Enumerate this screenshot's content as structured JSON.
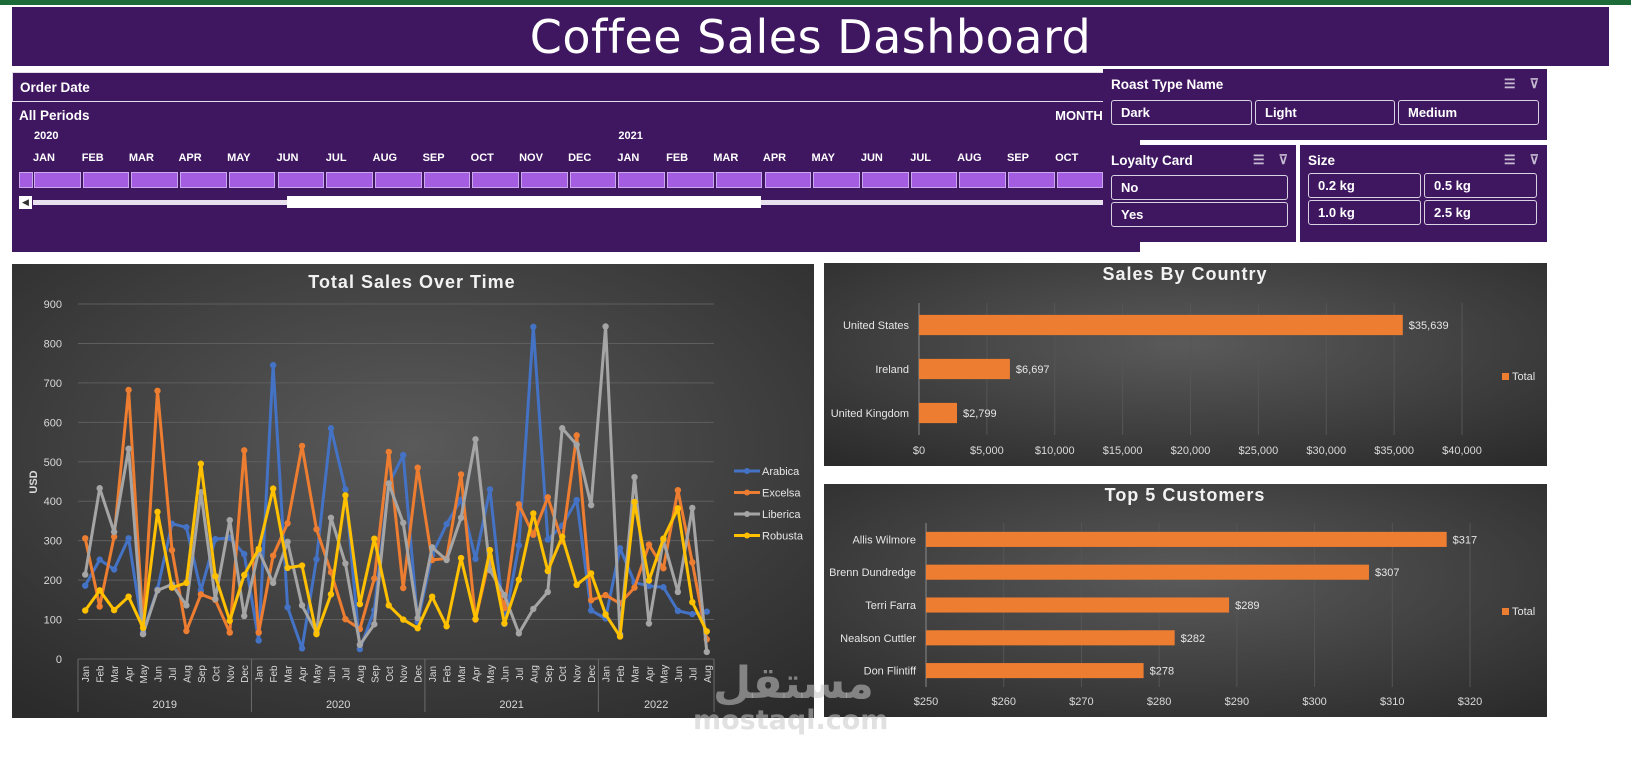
{
  "title": "Coffee Sales Dashboard",
  "colors": {
    "brand": "#3f1660",
    "bar": "#ed7d31",
    "arabica": "#4472c4",
    "excelsa": "#ed7d31",
    "liberica": "#a5a5a5",
    "robusta": "#ffc000"
  },
  "timeline": {
    "title": "Order Date",
    "periods_label": "All Periods",
    "granularity": "MONTHS",
    "years": [
      "2020",
      "2021"
    ],
    "months": [
      "JAN",
      "FEB",
      "MAR",
      "APR",
      "MAY",
      "JUN",
      "JUL",
      "AUG",
      "SEP",
      "OCT",
      "NOV",
      "DEC",
      "JAN",
      "FEB",
      "MAR",
      "APR",
      "MAY",
      "JUN",
      "JUL",
      "AUG",
      "SEP",
      "OCT"
    ]
  },
  "roast_slicer": {
    "title": "Roast Type Name",
    "items": [
      "Dark",
      "Light",
      "Medium"
    ]
  },
  "loyalty_slicer": {
    "title": "Loyalty Card",
    "items": [
      "No",
      "Yes"
    ]
  },
  "size_slicer": {
    "title": "Size",
    "items": [
      "0.2 kg",
      "0.5 kg",
      "1.0 kg",
      "2.5 kg"
    ]
  },
  "icons": [
    "multi-select-icon",
    "clear-filter-icon"
  ],
  "watermark": {
    "arabic": "مستقل",
    "latin": "mostaql.com"
  },
  "chart_data": [
    {
      "type": "line",
      "title": "Total Sales Over Time",
      "ylabel": "USD",
      "ylim": [
        0,
        900
      ],
      "yticks": [
        0,
        100,
        200,
        300,
        400,
        500,
        600,
        700,
        800,
        900
      ],
      "month_labels": [
        "Jan",
        "Feb",
        "Mar",
        "Apr",
        "May",
        "Jun",
        "Jul",
        "Aug",
        "Sep",
        "Oct",
        "Nov",
        "Dec",
        "Jan",
        "Feb",
        "Mar",
        "Apr",
        "May",
        "Jun",
        "Jul",
        "Aug",
        "Sep",
        "Oct",
        "Nov",
        "Dec",
        "Jan",
        "Feb",
        "Mar",
        "Apr",
        "May",
        "Jun",
        "Jul",
        "Aug",
        "Sep",
        "Oct",
        "Nov",
        "Dec",
        "Jan",
        "Feb",
        "Mar",
        "Apr",
        "May",
        "Jun",
        "Jul",
        "Aug"
      ],
      "years": [
        {
          "label": "2019",
          "months": 12
        },
        {
          "label": "2020",
          "months": 12
        },
        {
          "label": "2021",
          "months": 12
        },
        {
          "label": "2022",
          "months": 8
        }
      ],
      "legend": "right",
      "series": [
        {
          "name": "Arabica",
          "values": [
            186,
            252,
            227,
            306,
            68,
            177,
            343,
            334,
            174,
            304,
            307,
            266,
            47,
            745,
            131,
            27,
            253,
            585,
            430,
            25,
            124,
            443,
            517,
            94,
            264,
            342,
            404,
            254,
            430,
            89,
            288,
            842,
            303,
            338,
            403,
            123,
            103,
            281,
            194,
            185,
            182,
            122,
            114,
            120
          ]
        },
        {
          "name": "Excelsa",
          "values": [
            306,
            133,
            310,
            682,
            87,
            680,
            276,
            71,
            164,
            150,
            67,
            529,
            67,
            262,
            344,
            540,
            329,
            220,
            101,
            76,
            204,
            525,
            180,
            485,
            251,
            255,
            468,
            100,
            260,
            129,
            392,
            315,
            410,
            298,
            567,
            149,
            162,
            141,
            181,
            290,
            230,
            428,
            245,
            50
          ]
        },
        {
          "name": "Liberica",
          "values": [
            214,
            433,
            322,
            533,
            63,
            174,
            189,
            136,
            423,
            152,
            352,
            109,
            274,
            193,
            297,
            136,
            67,
            358,
            242,
            36,
            88,
            445,
            345,
            104,
            283,
            251,
            358,
            557,
            225,
            162,
            65,
            127,
            170,
            585,
            543,
            390,
            843,
            62,
            461,
            90,
            301,
            170,
            383,
            18
          ]
        },
        {
          "name": "Robusta",
          "values": [
            123,
            174,
            124,
            158,
            79,
            373,
            181,
            193,
            495,
            210,
            97,
            213,
            279,
            432,
            231,
            237,
            63,
            164,
            415,
            139,
            305,
            136,
            100,
            78,
            158,
            83,
            256,
            101,
            276,
            90,
            201,
            369,
            223,
            310,
            188,
            217,
            113,
            57,
            398,
            199,
            305,
            382,
            144,
            70
          ]
        }
      ]
    },
    {
      "type": "bar",
      "orientation": "horizontal",
      "title": "Sales By Country",
      "categories": [
        "United States",
        "Ireland",
        "United Kingdom"
      ],
      "values": [
        35639,
        6697,
        2799
      ],
      "value_labels": [
        "$35,639",
        "$6,697",
        "$2,799"
      ],
      "xlim": [
        0,
        40000
      ],
      "xticks": [
        "$0",
        "$5,000",
        "$10,000",
        "$15,000",
        "$20,000",
        "$25,000",
        "$30,000",
        "$35,000",
        "$40,000"
      ],
      "legend_label": "Total",
      "legend": "right"
    },
    {
      "type": "bar",
      "orientation": "horizontal",
      "title": "Top 5 Customers",
      "categories": [
        "Allis Wilmore",
        "Brenn Dundredge",
        "Terri Farra",
        "Nealson Cuttler",
        "Don Flintiff"
      ],
      "values": [
        317,
        307,
        289,
        282,
        278
      ],
      "value_labels": [
        "$317",
        "$307",
        "$289",
        "$282",
        "$278"
      ],
      "xlim": [
        250,
        320
      ],
      "xticks": [
        "$250",
        "$260",
        "$270",
        "$280",
        "$290",
        "$300",
        "$310",
        "$320"
      ],
      "legend_label": "Total",
      "legend": "right"
    }
  ]
}
